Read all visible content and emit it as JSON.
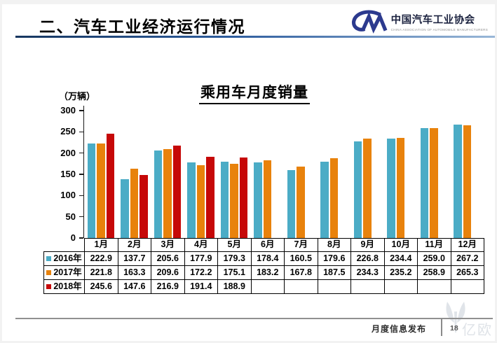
{
  "header": {
    "title": "二、汽车工业经济运行情况"
  },
  "logo": {
    "name_cn": "中国汽车工业协会",
    "name_en": "CHINA ASSOCIATION OF AUTOMOBILE MANUFACTURERS",
    "color": "#2c3a8e"
  },
  "chart_data": {
    "type": "bar",
    "title": "乘用车月度销量",
    "unit_label": "（万辆）",
    "xlabel": "",
    "ylabel": "万辆",
    "ylim": [
      0,
      300
    ],
    "ytick_step": 50,
    "grid": false,
    "legend_position": "table-left-keys",
    "categories": [
      "1月",
      "2月",
      "3月",
      "4月",
      "5月",
      "6月",
      "7月",
      "8月",
      "9月",
      "10月",
      "11月",
      "12月"
    ],
    "series": [
      {
        "name": "2016年",
        "color": "#4BACC6",
        "values": [
          "222.9",
          "137.7",
          "205.6",
          "177.9",
          "179.3",
          "178.4",
          "160.5",
          "179.6",
          "226.8",
          "234.4",
          "259.0",
          "267.2"
        ]
      },
      {
        "name": "2017年",
        "color": "#E8820C",
        "values": [
          "221.8",
          "163.3",
          "209.6",
          "172.2",
          "175.1",
          "183.2",
          "167.8",
          "187.5",
          "234.3",
          "235.2",
          "258.9",
          "265.3"
        ]
      },
      {
        "name": "2018年",
        "color": "#C60808",
        "values": [
          "245.6",
          "147.6",
          "216.9",
          "191.4",
          "188.9",
          "",
          "",
          "",
          "",
          "",
          "",
          ""
        ]
      }
    ]
  },
  "footer": {
    "label": "月度信息发布",
    "page": "18",
    "watermark": "亿欧"
  }
}
